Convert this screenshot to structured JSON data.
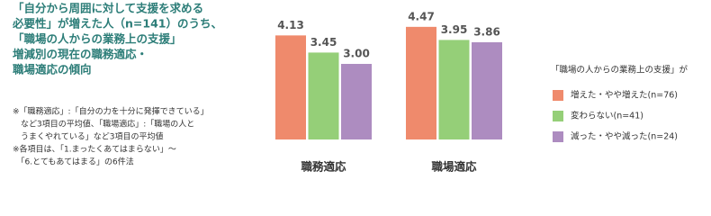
{
  "chart_data": {
    "type": "bar",
    "title_lines": [
      "「自分から周囲に対して支援を求める",
      "必要性」が増えた人（n=141）のうち、",
      "「職場の人からの業務上の支援」",
      "増減別の現在の職務適応・",
      "職場適応の傾向"
    ],
    "notes": [
      "※「職務適応」:「自分の力を十分に発揮できている」",
      "　など3項目の平均値、「職場適応」:「職場の人と",
      "　うまくやれている」など3項目の平均値",
      "※各項目は、「1.まったくあてはまらない」〜",
      "　「6.とてもあてはまる」の6件法"
    ],
    "legend_title": "「職場の人からの業務上の支援」が",
    "categories": [
      "職務適応",
      "職場適応"
    ],
    "series": [
      {
        "name": "増えた・やや増えた(n=76)",
        "color": "#ef8a6c",
        "values": [
          4.13,
          4.47
        ]
      },
      {
        "name": "変わらない(n=41)",
        "color": "#95cf78",
        "values": [
          3.45,
          3.95
        ]
      },
      {
        "name": "減った・やや減った(n=24)",
        "color": "#ad8cc0",
        "values": [
          3.0,
          3.86
        ],
        "value_labels": [
          "3.00",
          "3.86"
        ]
      }
    ],
    "ylim": [
      -1,
      5.5
    ]
  }
}
